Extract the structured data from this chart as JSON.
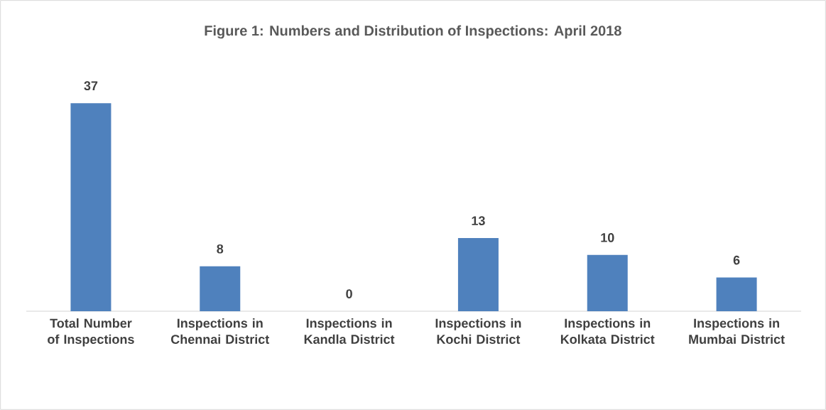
{
  "chart_data": {
    "type": "bar",
    "title": "Figure 1: Numbers and Distribution of Inspections: April 2018",
    "categories": [
      "Total Number of Inspections",
      "Inspections in Chennai District",
      "Inspections in Kandla District",
      "Inspections in Kochi District",
      "Inspections in Kolkata District",
      "Inspections in Mumbai District"
    ],
    "values": [
      37,
      8,
      0,
      13,
      10,
      6
    ],
    "color": "#4f81bd",
    "data_labels": true
  }
}
